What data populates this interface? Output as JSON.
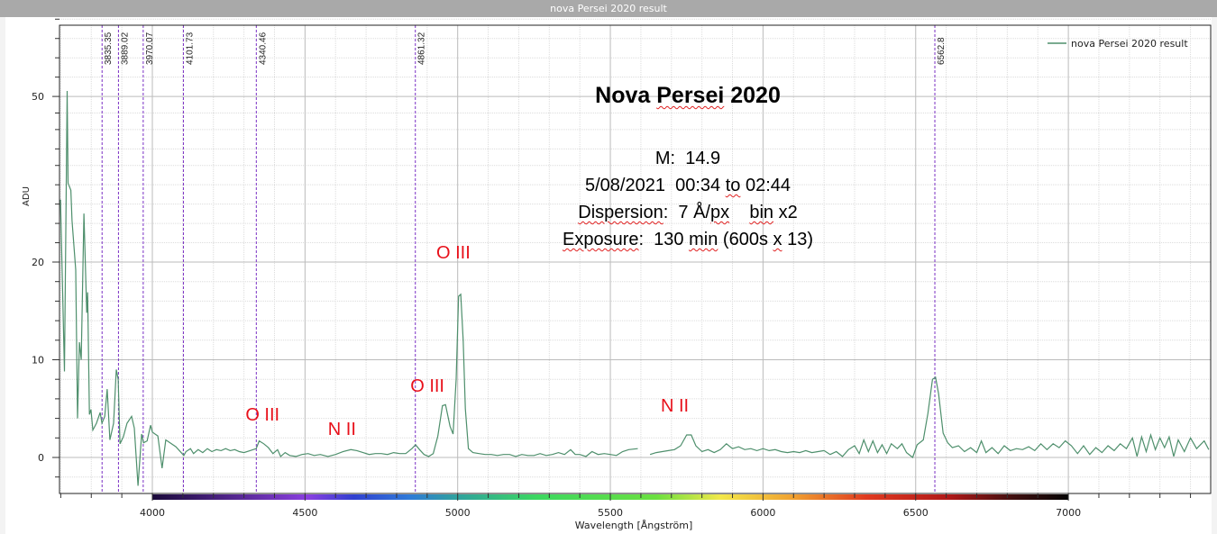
{
  "window": {
    "title": "nova Persei 2020 result"
  },
  "info_block": {
    "title_pre": "Nova ",
    "title_wavy": "Persei",
    "title_post": " 2020",
    "magnitude": "M:  14.9",
    "date_pre": "5/08/2021  00:34 ",
    "date_wavy": "to",
    "date_post": " 02:44",
    "disp_wavy": "Dispersion",
    "disp_mid": ":  7 Å/",
    "disp_px": "px",
    "disp_sp": "    ",
    "disp_bin": "bin",
    "disp_post": " x2",
    "exp_wavy": "Exposure",
    "exp_mid": ":  130 ",
    "exp_min": "min",
    "exp_mid2": " (600s ",
    "exp_x": "x",
    "exp_post": " 13)"
  },
  "chart_data": {
    "type": "line",
    "title": "",
    "xlabel": "Wavelength [Ångström]",
    "ylabel": "ADU",
    "xlim": [
      3696,
      7463
    ],
    "ylim": [
      -3.5,
      68
    ],
    "x_ticks": [
      4000,
      4500,
      5000,
      5500,
      6000,
      6500,
      7000
    ],
    "y_ticks": [
      0,
      10,
      20,
      50
    ],
    "y_scale": "nonlinear",
    "grid": true,
    "legend": {
      "position": "top-right",
      "entries": [
        "nova Persei 2020 result"
      ]
    },
    "series_color": "#4e8f6c",
    "marker_color": "#7a2fc4",
    "line_markers": [
      "3835.35",
      "3889.02",
      "3970.07",
      "4101.73",
      "4340.46",
      "4861.32",
      "6562.8"
    ],
    "colorbar_range": [
      4000,
      7000
    ],
    "annotations": [
      {
        "text": "O III",
        "x": 4370,
        "y": 4.2
      },
      {
        "text": "N II",
        "x": 4640,
        "y": 2.8
      },
      {
        "text": "O III",
        "x": 4910,
        "y": 7.2
      },
      {
        "text": "O III",
        "x": 4995,
        "y": 21.5
      },
      {
        "text": "N II",
        "x": 5730,
        "y": 5.2
      }
    ],
    "series": [
      {
        "name": "nova Persei 2020 result",
        "points": [
          [
            3699,
            31.3
          ],
          [
            3712,
            8.8
          ],
          [
            3721,
            51
          ],
          [
            3724,
            34.3
          ],
          [
            3733,
            33
          ],
          [
            3737,
            27.5
          ],
          [
            3749,
            19.2
          ],
          [
            3755,
            4.0
          ],
          [
            3761,
            11.8
          ],
          [
            3767,
            10
          ],
          [
            3776,
            28.8
          ],
          [
            3785,
            14.8
          ],
          [
            3788,
            16.9
          ],
          [
            3794,
            4.4
          ],
          [
            3799,
            4.9
          ],
          [
            3805,
            2.8
          ],
          [
            3817,
            3.5
          ],
          [
            3829,
            4.6
          ],
          [
            3835,
            3.5
          ],
          [
            3844,
            4.2
          ],
          [
            3852,
            7
          ],
          [
            3861,
            1.8
          ],
          [
            3873,
            3.5
          ],
          [
            3882,
            9
          ],
          [
            3888,
            8
          ],
          [
            3894,
            1.4
          ],
          [
            3905,
            2.1
          ],
          [
            3917,
            3.5
          ],
          [
            3932,
            4.2
          ],
          [
            3941,
            3
          ],
          [
            3953,
            -2.9
          ],
          [
            3965,
            2.4
          ],
          [
            3971,
            1.5
          ],
          [
            3983,
            1.7
          ],
          [
            3994,
            3.3
          ],
          [
            4000,
            2.6
          ],
          [
            4009,
            2.4
          ],
          [
            4018,
            2.2
          ],
          [
            4032,
            -1.1
          ],
          [
            4044,
            1.8
          ],
          [
            4077,
            1.1
          ],
          [
            4103,
            0.2
          ],
          [
            4110,
            0.6
          ],
          [
            4125,
            0.9
          ],
          [
            4135,
            0.4
          ],
          [
            4150,
            0.8
          ],
          [
            4165,
            0.5
          ],
          [
            4180,
            0.9
          ],
          [
            4195,
            0.6
          ],
          [
            4210,
            0.8
          ],
          [
            4225,
            0.7
          ],
          [
            4240,
            0.9
          ],
          [
            4255,
            0.7
          ],
          [
            4270,
            0.8
          ],
          [
            4285,
            0.6
          ],
          [
            4300,
            0.5
          ],
          [
            4320,
            0.7
          ],
          [
            4340,
            0.9
          ],
          [
            4350,
            1.7
          ],
          [
            4365,
            1.4
          ],
          [
            4380,
            1.0
          ],
          [
            4395,
            0.4
          ],
          [
            4410,
            0.8
          ],
          [
            4420,
            0.1
          ],
          [
            4435,
            0.5
          ],
          [
            4450,
            0.2
          ],
          [
            4470,
            0.1
          ],
          [
            4490,
            0.3
          ],
          [
            4510,
            0.4
          ],
          [
            4530,
            0.2
          ],
          [
            4550,
            0.3
          ],
          [
            4575,
            0.1
          ],
          [
            4600,
            0.3
          ],
          [
            4625,
            0.6
          ],
          [
            4650,
            0.8
          ],
          [
            4670,
            0.7
          ],
          [
            4690,
            0.5
          ],
          [
            4710,
            0.3
          ],
          [
            4730,
            0.4
          ],
          [
            4750,
            0.4
          ],
          [
            4770,
            0.3
          ],
          [
            4790,
            0.5
          ],
          [
            4810,
            0.4
          ],
          [
            4830,
            0.4
          ],
          [
            4850,
            0.9
          ],
          [
            4862,
            1.3
          ],
          [
            4875,
            0.8
          ],
          [
            4890,
            0.3
          ],
          [
            4905,
            0.1
          ],
          [
            4920,
            0.4
          ],
          [
            4935,
            2.2
          ],
          [
            4950,
            5.3
          ],
          [
            4960,
            5.4
          ],
          [
            4975,
            3.2
          ],
          [
            4985,
            2.4
          ],
          [
            4995,
            8
          ],
          [
            5003,
            16.5
          ],
          [
            5010,
            16.7
          ],
          [
            5018,
            12
          ],
          [
            5025,
            5
          ],
          [
            5035,
            0.9
          ],
          [
            5050,
            0.5
          ],
          [
            5070,
            0.4
          ],
          [
            5090,
            0.3
          ],
          [
            5110,
            0.3
          ],
          [
            5130,
            0.2
          ],
          [
            5150,
            0.3
          ],
          [
            5170,
            0.3
          ],
          [
            5190,
            0.1
          ],
          [
            5210,
            0.3
          ],
          [
            5230,
            0.2
          ],
          [
            5250,
            0.2
          ],
          [
            5270,
            0.4
          ],
          [
            5290,
            0.2
          ],
          [
            5310,
            0.3
          ],
          [
            5330,
            0.5
          ],
          [
            5350,
            0.3
          ],
          [
            5370,
            0.8
          ],
          [
            5385,
            0.3
          ],
          [
            5400,
            0.3
          ],
          [
            5420,
            0.1
          ],
          [
            5440,
            0.6
          ],
          [
            5460,
            0.3
          ],
          [
            5480,
            0.4
          ],
          [
            5500,
            0.3
          ],
          [
            5520,
            0.2
          ],
          [
            5540,
            0.6
          ],
          [
            5560,
            0.8
          ],
          [
            5590,
            0.9
          ],
          null,
          [
            5630,
            0.3
          ],
          [
            5650,
            0.5
          ],
          [
            5670,
            0.6
          ],
          [
            5690,
            0.7
          ],
          [
            5710,
            0.8
          ],
          [
            5730,
            1.2
          ],
          [
            5750,
            2.3
          ],
          [
            5765,
            2.3
          ],
          [
            5780,
            1.2
          ],
          [
            5800,
            0.6
          ],
          [
            5820,
            0.8
          ],
          [
            5840,
            0.5
          ],
          [
            5860,
            0.8
          ],
          [
            5880,
            1.4
          ],
          [
            5900,
            0.9
          ],
          [
            5920,
            1.1
          ],
          [
            5940,
            0.8
          ],
          [
            5960,
            0.9
          ],
          [
            5980,
            0.7
          ],
          [
            6000,
            0.9
          ],
          [
            6020,
            0.7
          ],
          [
            6040,
            0.8
          ],
          [
            6060,
            0.6
          ],
          [
            6080,
            0.5
          ],
          [
            6100,
            0.6
          ],
          [
            6120,
            0.5
          ],
          [
            6140,
            0.7
          ],
          [
            6160,
            0.5
          ],
          [
            6180,
            0.6
          ],
          [
            6200,
            0.7
          ],
          [
            6220,
            0.3
          ],
          [
            6240,
            0.6
          ],
          [
            6260,
            0.1
          ],
          [
            6280,
            0.8
          ],
          [
            6300,
            1.2
          ],
          [
            6315,
            0.4
          ],
          [
            6330,
            1.8
          ],
          [
            6345,
            0.6
          ],
          [
            6360,
            1.7
          ],
          [
            6375,
            0.5
          ],
          [
            6390,
            1.3
          ],
          [
            6405,
            0.4
          ],
          [
            6420,
            1.4
          ],
          [
            6440,
            0.9
          ],
          [
            6455,
            1.4
          ],
          [
            6470,
            0.5
          ],
          [
            6490,
            0.0
          ],
          [
            6505,
            1.3
          ],
          [
            6525,
            1.8
          ],
          [
            6540,
            4.5
          ],
          [
            6555,
            8.0
          ],
          [
            6565,
            8.2
          ],
          [
            6575,
            6.5
          ],
          [
            6590,
            2.5
          ],
          [
            6605,
            1.5
          ],
          [
            6620,
            1.0
          ],
          [
            6640,
            1.2
          ],
          [
            6660,
            0.6
          ],
          [
            6680,
            1.0
          ],
          [
            6700,
            0.5
          ],
          [
            6715,
            1.7
          ],
          [
            6730,
            0.5
          ],
          [
            6750,
            1.0
          ],
          [
            6770,
            0.4
          ],
          [
            6790,
            1.2
          ],
          [
            6810,
            0.7
          ],
          [
            6830,
            0.9
          ],
          [
            6850,
            0.8
          ],
          [
            6870,
            1.1
          ],
          [
            6890,
            0.7
          ],
          [
            6910,
            1.4
          ],
          [
            6930,
            0.8
          ],
          [
            6950,
            1.4
          ],
          [
            6970,
            1.0
          ],
          [
            6990,
            1.7
          ],
          [
            7010,
            1.2
          ],
          [
            7030,
            0.4
          ],
          [
            7050,
            1.2
          ],
          [
            7070,
            0.3
          ],
          [
            7090,
            1.0
          ],
          [
            7110,
            0.5
          ],
          [
            7130,
            1.2
          ],
          [
            7150,
            0.7
          ],
          [
            7170,
            1.4
          ],
          [
            7190,
            0.9
          ],
          [
            7210,
            2.0
          ],
          [
            7225,
            0.1
          ],
          [
            7240,
            2.1
          ],
          [
            7255,
            0.6
          ],
          [
            7270,
            2.3
          ],
          [
            7285,
            0.8
          ],
          [
            7300,
            2.0
          ],
          [
            7315,
            1.0
          ],
          [
            7330,
            2.1
          ],
          [
            7345,
            0.1
          ],
          [
            7360,
            1.8
          ],
          [
            7380,
            0.6
          ],
          [
            7400,
            2.0
          ],
          [
            7420,
            0.9
          ],
          [
            7445,
            1.7
          ],
          [
            7460,
            0.8
          ]
        ]
      }
    ]
  }
}
